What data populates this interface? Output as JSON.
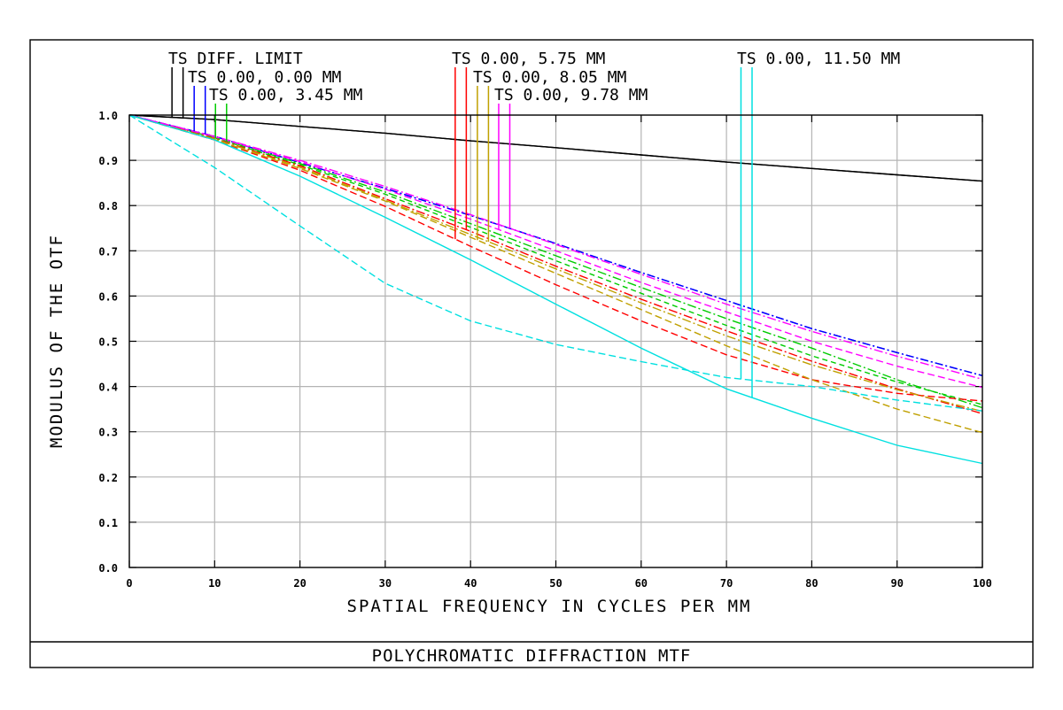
{
  "chart_data": {
    "type": "line",
    "title": "POLYCHROMATIC DIFFRACTION MTF",
    "xlabel": "SPATIAL FREQUENCY IN CYCLES PER MM",
    "ylabel": "MODULUS OF THE OTF",
    "xlim": [
      0,
      100
    ],
    "ylim": [
      0,
      1
    ],
    "xticks": [
      "0",
      "10",
      "20",
      "30",
      "40",
      "50",
      "60",
      "70",
      "80",
      "90",
      "100"
    ],
    "yticks": [
      "0.0",
      "0.1",
      "0.2",
      "0.3",
      "0.4",
      "0.5",
      "0.6",
      "0.7",
      "0.8",
      "0.9",
      "1.0"
    ],
    "grid": true,
    "x": [
      0,
      10,
      20,
      30,
      40,
      50,
      60,
      70,
      80,
      90,
      100
    ],
    "legend_labels": [
      "TS DIFF. LIMIT",
      "TS 0.00, 0.00 MM",
      "TS 0.00, 3.45 MM",
      "TS 0.00, 5.75 MM",
      "TS 0.00, 8.05 MM",
      "TS 0.00, 9.78 MM",
      "TS 0.00, 11.50 MM"
    ],
    "series": [
      {
        "label_index": 0,
        "kind": "T",
        "color": "#000000",
        "dash": "",
        "marker_x": 5.0,
        "values": [
          1.0,
          0.99,
          0.975,
          0.96,
          0.943,
          0.928,
          0.912,
          0.896,
          0.882,
          0.868,
          0.854
        ]
      },
      {
        "label_index": 0,
        "kind": "S",
        "color": "#000000",
        "dash": "",
        "marker_x": 6.3,
        "values": [
          1.0,
          0.99,
          0.975,
          0.96,
          0.943,
          0.928,
          0.912,
          0.896,
          0.882,
          0.868,
          0.854
        ]
      },
      {
        "label_index": 1,
        "kind": "T",
        "color": "#0000ff",
        "dash": "9,3,2,3",
        "marker_x": 7.6,
        "values": [
          1.0,
          0.953,
          0.895,
          0.838,
          0.778,
          0.716,
          0.652,
          0.59,
          0.528,
          0.475,
          0.424
        ]
      },
      {
        "label_index": 1,
        "kind": "S",
        "color": "#0000ff",
        "dash": "9,3,2,3",
        "marker_x": 8.9,
        "values": [
          1.0,
          0.953,
          0.895,
          0.838,
          0.778,
          0.716,
          0.652,
          0.59,
          0.528,
          0.475,
          0.424
        ]
      },
      {
        "label_index": 2,
        "kind": "T",
        "color": "#00cc00",
        "dash": "6,4",
        "marker_x": 10.1,
        "values": [
          1.0,
          0.95,
          0.89,
          0.825,
          0.752,
          0.678,
          0.606,
          0.535,
          0.468,
          0.41,
          0.36
        ]
      },
      {
        "label_index": 2,
        "kind": "S",
        "color": "#00cc00",
        "dash": "10,3,2,3",
        "marker_x": 11.4,
        "values": [
          1.0,
          0.951,
          0.893,
          0.83,
          0.76,
          0.689,
          0.619,
          0.55,
          0.485,
          0.415,
          0.353
        ]
      },
      {
        "label_index": 3,
        "kind": "T",
        "color": "#ff0000",
        "dash": "8,4",
        "marker_x": 38.2,
        "values": [
          1.0,
          0.945,
          0.878,
          0.798,
          0.71,
          0.625,
          0.545,
          0.47,
          0.415,
          0.385,
          0.368
        ]
      },
      {
        "label_index": 3,
        "kind": "S",
        "color": "#ff0000",
        "dash": "10,3,2,3",
        "marker_x": 39.5,
        "values": [
          1.0,
          0.948,
          0.888,
          0.815,
          0.743,
          0.666,
          0.593,
          0.523,
          0.456,
          0.395,
          0.34
        ]
      },
      {
        "label_index": 4,
        "kind": "T",
        "color": "#c0a000",
        "dash": "8,4",
        "marker_x": 40.8,
        "values": [
          1.0,
          0.946,
          0.882,
          0.81,
          0.73,
          0.65,
          0.57,
          0.49,
          0.415,
          0.35,
          0.298
        ]
      },
      {
        "label_index": 4,
        "kind": "S",
        "color": "#c0a000",
        "dash": "10,3,2,3",
        "marker_x": 42.1,
        "values": [
          1.0,
          0.947,
          0.885,
          0.812,
          0.736,
          0.66,
          0.585,
          0.512,
          0.448,
          0.393,
          0.345
        ]
      },
      {
        "label_index": 5,
        "kind": "T",
        "color": "#ff00ff",
        "dash": "8,4",
        "marker_x": 43.3,
        "values": [
          1.0,
          0.952,
          0.897,
          0.836,
          0.77,
          0.7,
          0.63,
          0.565,
          0.5,
          0.445,
          0.398
        ]
      },
      {
        "label_index": 5,
        "kind": "S",
        "color": "#ff00ff",
        "dash": "10,3,2,3",
        "marker_x": 44.6,
        "values": [
          1.0,
          0.953,
          0.9,
          0.842,
          0.78,
          0.714,
          0.648,
          0.582,
          0.522,
          0.467,
          0.416
        ]
      },
      {
        "label_index": 6,
        "kind": "T",
        "color": "#00e0e0",
        "dash": "8,4",
        "marker_x": 71.7,
        "values": [
          1.0,
          0.884,
          0.755,
          0.628,
          0.545,
          0.493,
          0.455,
          0.42,
          0.4,
          0.37,
          0.346
        ]
      },
      {
        "label_index": 6,
        "kind": "S",
        "color": "#00e0e0",
        "dash": "",
        "marker_x": 73.0,
        "values": [
          1.0,
          0.945,
          0.865,
          0.774,
          0.68,
          0.582,
          0.485,
          0.395,
          0.33,
          0.27,
          0.23
        ]
      }
    ]
  }
}
